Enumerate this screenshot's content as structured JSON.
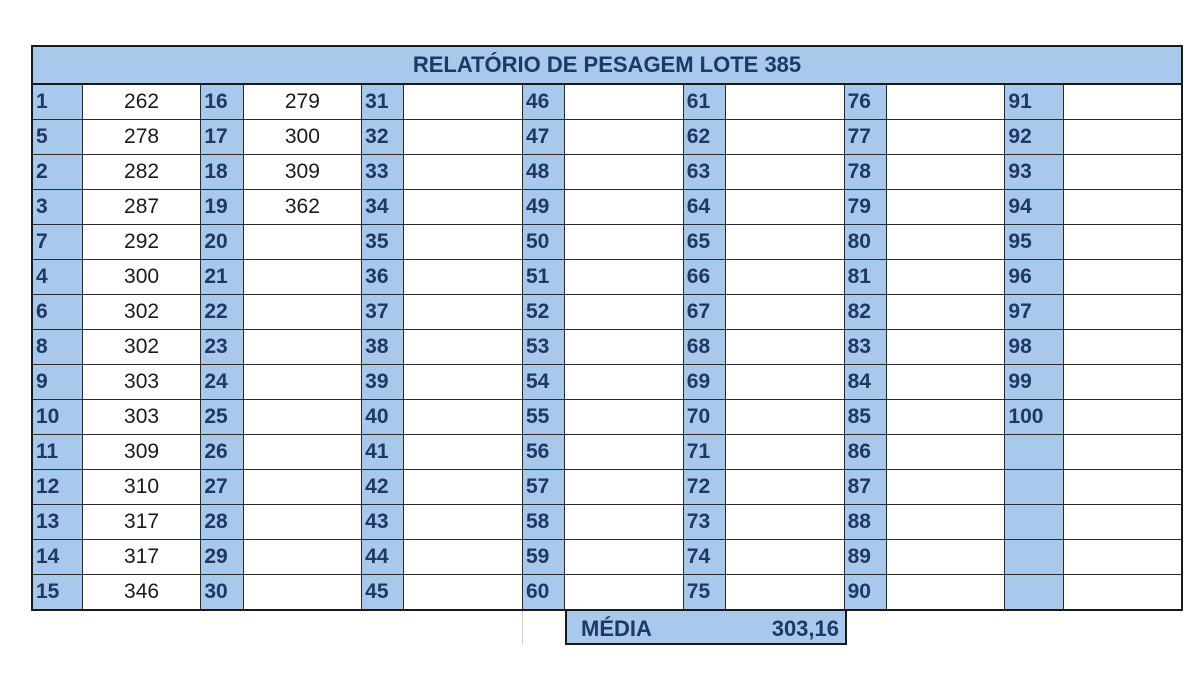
{
  "report": {
    "title": "RELATÓRIO DE PESAGEM LOTE 385",
    "columns": [
      {
        "numbers": [
          "1",
          "5",
          "2",
          "3",
          "7",
          "4",
          "6",
          "8",
          "9",
          "10",
          "11",
          "12",
          "13",
          "14",
          "15"
        ],
        "values": [
          "262",
          "278",
          "282",
          "287",
          "292",
          "300",
          "302",
          "302",
          "303",
          "303",
          "309",
          "310",
          "317",
          "317",
          "346"
        ]
      },
      {
        "numbers": [
          "16",
          "17",
          "18",
          "19",
          "20",
          "21",
          "22",
          "23",
          "24",
          "25",
          "26",
          "27",
          "28",
          "29",
          "30"
        ],
        "values": [
          "279",
          "300",
          "309",
          "362",
          "",
          "",
          "",
          "",
          "",
          "",
          "",
          "",
          "",
          "",
          ""
        ]
      },
      {
        "numbers": [
          "31",
          "32",
          "33",
          "34",
          "35",
          "36",
          "37",
          "38",
          "39",
          "40",
          "41",
          "42",
          "43",
          "44",
          "45"
        ],
        "values": [
          "",
          "",
          "",
          "",
          "",
          "",
          "",
          "",
          "",
          "",
          "",
          "",
          "",
          "",
          ""
        ]
      },
      {
        "numbers": [
          "46",
          "47",
          "48",
          "49",
          "50",
          "51",
          "52",
          "53",
          "54",
          "55",
          "56",
          "57",
          "58",
          "59",
          "60"
        ],
        "values": [
          "",
          "",
          "",
          "",
          "",
          "",
          "",
          "",
          "",
          "",
          "",
          "",
          "",
          "",
          ""
        ]
      },
      {
        "numbers": [
          "61",
          "62",
          "63",
          "64",
          "65",
          "66",
          "67",
          "68",
          "69",
          "70",
          "71",
          "72",
          "73",
          "74",
          "75"
        ],
        "values": [
          "",
          "",
          "",
          "",
          "",
          "",
          "",
          "",
          "",
          "",
          "",
          "",
          "",
          "",
          ""
        ]
      },
      {
        "numbers": [
          "76",
          "77",
          "78",
          "79",
          "80",
          "81",
          "82",
          "83",
          "84",
          "85",
          "86",
          "87",
          "88",
          "89",
          "90"
        ],
        "values": [
          "",
          "",
          "",
          "",
          "",
          "",
          "",
          "",
          "",
          "",
          "",
          "",
          "",
          "",
          ""
        ]
      },
      {
        "numbers": [
          "91",
          "92",
          "93",
          "94",
          "95",
          "96",
          "97",
          "98",
          "99",
          "100",
          "",
          "",
          "",
          "",
          ""
        ],
        "values": [
          "",
          "",
          "",
          "",
          "",
          "",
          "",
          "",
          "",
          "",
          "",
          "",
          "",
          "",
          ""
        ]
      }
    ],
    "media_label": "MÉDIA",
    "media_value": "303,16"
  },
  "colors": {
    "header_fill": "#a8c8ec",
    "header_text": "#1f3864",
    "grid_line": "#2a2a2a"
  }
}
